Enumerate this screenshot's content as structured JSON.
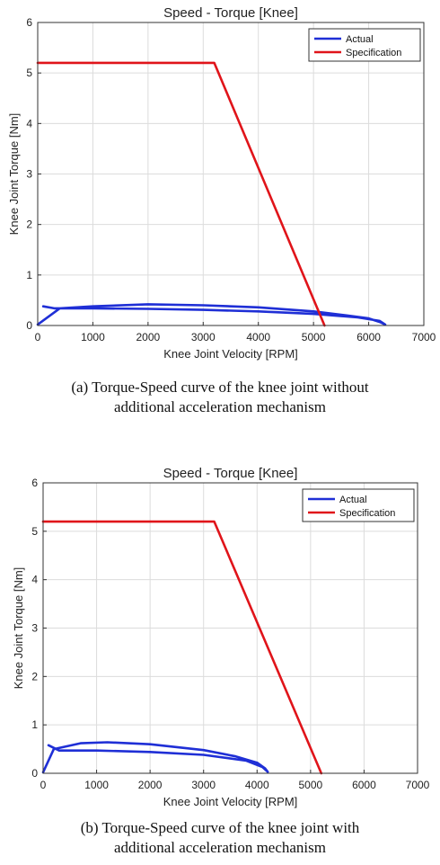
{
  "chart_data": [
    {
      "type": "line",
      "title": "Speed - Torque [Knee]",
      "xlabel": "Knee Joint Velocity [RPM]",
      "ylabel": "Knee Joint Torque [Nm]",
      "xlim": [
        0,
        7000
      ],
      "ylim": [
        0,
        6
      ],
      "xticks": [
        "0",
        "1000",
        "2000",
        "3000",
        "4000",
        "5000",
        "6000",
        "7000"
      ],
      "yticks": [
        "0",
        "1",
        "2",
        "3",
        "4",
        "5",
        "6"
      ],
      "grid": true,
      "legend_position": "top-right",
      "caption_lines": [
        "(a) Torque-Speed curve of the knee joint without",
        "additional acceleration mechanism"
      ],
      "series": [
        {
          "name": "Actual",
          "color": "#1f2fd6",
          "x": [
            0,
            400,
            1000,
            2000,
            3000,
            4000,
            5000,
            5600,
            6000,
            6200,
            6300,
            6200,
            5800,
            5000,
            4000,
            3000,
            2000,
            1000,
            300,
            100
          ],
          "y": [
            0.02,
            0.34,
            0.38,
            0.42,
            0.4,
            0.36,
            0.28,
            0.2,
            0.14,
            0.07,
            0.02,
            0.09,
            0.16,
            0.23,
            0.28,
            0.31,
            0.33,
            0.34,
            0.34,
            0.38
          ]
        },
        {
          "name": "Specification",
          "color": "#e0141a",
          "x": [
            0,
            3200,
            5200
          ],
          "y": [
            5.2,
            5.2,
            0
          ]
        }
      ]
    },
    {
      "type": "line",
      "title": "Speed - Torque [Knee]",
      "xlabel": "Knee Joint Velocity [RPM]",
      "ylabel": "Knee Joint Torque [Nm]",
      "xlim": [
        0,
        7000
      ],
      "ylim": [
        0,
        6
      ],
      "xticks": [
        "0",
        "1000",
        "2000",
        "3000",
        "4000",
        "5000",
        "6000",
        "7000"
      ],
      "yticks": [
        "0",
        "1",
        "2",
        "3",
        "4",
        "5",
        "6"
      ],
      "grid": true,
      "legend_position": "top-right",
      "caption_lines": [
        "(b) Torque-Speed curve of the knee joint with",
        "additional acceleration mechanism"
      ],
      "series": [
        {
          "name": "Actual",
          "color": "#1f2fd6",
          "x": [
            0,
            200,
            700,
            1200,
            2000,
            3000,
            3600,
            4000,
            4150,
            4200,
            4100,
            3800,
            3000,
            2000,
            1000,
            300,
            100
          ],
          "y": [
            0.02,
            0.5,
            0.62,
            0.64,
            0.6,
            0.48,
            0.35,
            0.22,
            0.1,
            0.03,
            0.13,
            0.26,
            0.38,
            0.44,
            0.47,
            0.47,
            0.58
          ]
        },
        {
          "name": "Specification",
          "color": "#e0141a",
          "x": [
            0,
            3200,
            5200
          ],
          "y": [
            5.2,
            5.2,
            0
          ]
        }
      ]
    }
  ]
}
